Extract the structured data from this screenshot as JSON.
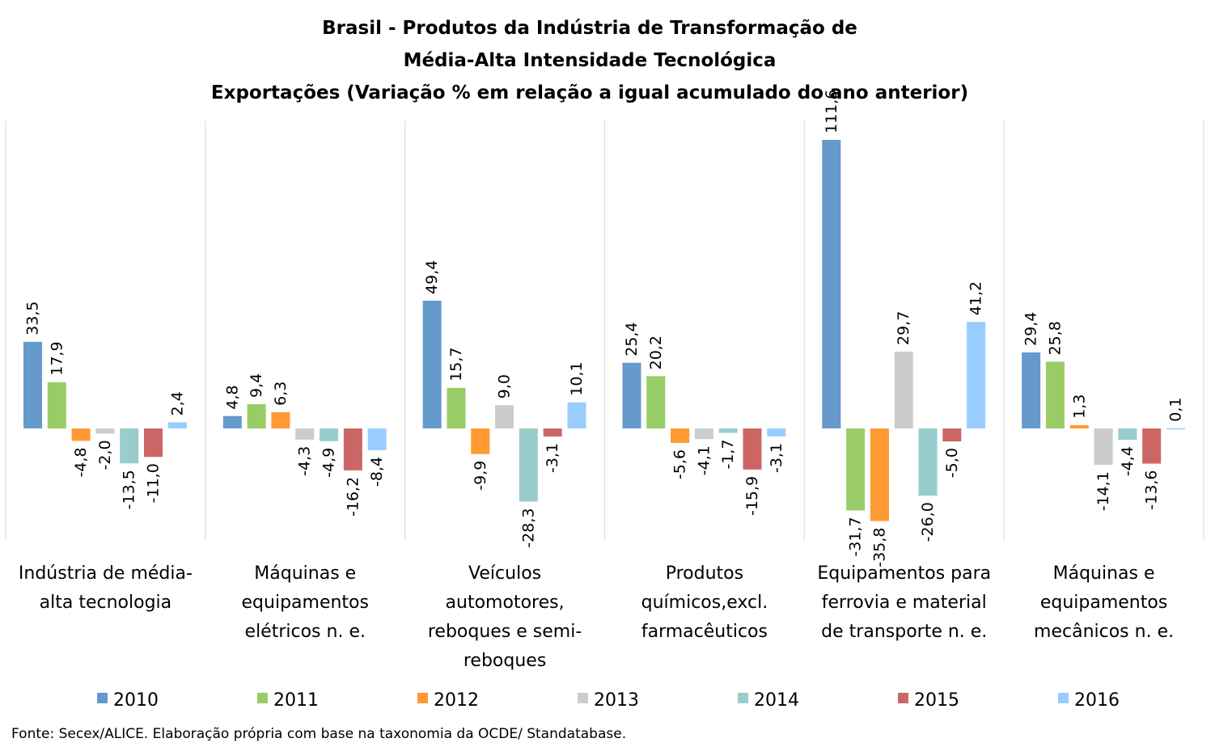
{
  "chart_data": {
    "type": "bar",
    "title": [
      "Brasil - Produtos da Indústria de Transformação de",
      "Média-Alta Intensidade Tecnológica",
      "Exportações (Variação % em relação a igual acumulado do ano anterior)"
    ],
    "categories": [
      [
        "Indústria de média-",
        "alta tecnologia"
      ],
      [
        "Máquinas e",
        "equipamentos",
        "elétricos n. e."
      ],
      [
        "Veículos",
        "automotores,",
        "reboques e semi-",
        "reboques"
      ],
      [
        "Produtos",
        "químicos,excl.",
        "farmacêuticos"
      ],
      [
        "Equipamentos para",
        "ferrovia e material",
        "de transporte n. e."
      ],
      [
        "Máquinas e",
        "equipamentos",
        "mecânicos  n. e."
      ]
    ],
    "series": [
      {
        "name": "2010",
        "color": "#6699cc",
        "values": [
          33.5,
          4.8,
          49.4,
          25.4,
          111.6,
          29.4
        ],
        "labels": [
          "33,5",
          "4,8",
          "49,4",
          "25,4",
          "111,6",
          "29,4"
        ]
      },
      {
        "name": "2011",
        "color": "#99cc66",
        "values": [
          17.9,
          9.4,
          15.7,
          20.2,
          -31.7,
          25.8
        ],
        "labels": [
          "17,9",
          "9,4",
          "15,7",
          "20,2",
          "-31,7",
          "25,8"
        ]
      },
      {
        "name": "2012",
        "color": "#ff9933",
        "values": [
          -4.8,
          6.3,
          -9.9,
          -5.6,
          -35.8,
          1.3
        ],
        "labels": [
          "-4,8",
          "6,3",
          "-9,9",
          "-5,6",
          "-35,8",
          "1,3"
        ]
      },
      {
        "name": "2013",
        "color": "#cccccc",
        "values": [
          -2.0,
          -4.3,
          9.0,
          -4.1,
          29.7,
          -14.1
        ],
        "labels": [
          "-2,0",
          "-4,3",
          "9,0",
          "-4,1",
          "29,7",
          "-14,1"
        ]
      },
      {
        "name": "2014",
        "color": "#99cccc",
        "values": [
          -13.5,
          -4.9,
          -28.3,
          -1.7,
          -26.0,
          -4.4
        ],
        "labels": [
          "-13,5",
          "-4,9",
          "-28,3",
          "-1,7",
          "-26,0",
          "-4,4"
        ]
      },
      {
        "name": "2015",
        "color": "#cc6666",
        "values": [
          -11.0,
          -16.2,
          -3.1,
          -15.9,
          -5.0,
          -13.6
        ],
        "labels": [
          "-11,0",
          "-16,2",
          "-3,1",
          "-15,9",
          "-5,0",
          "-13,6"
        ]
      },
      {
        "name": "2016",
        "color": "#99ccff",
        "values": [
          2.4,
          -8.4,
          10.1,
          -3.1,
          41.2,
          0.1
        ],
        "labels": [
          "2,4",
          "-8,4",
          "10,1",
          "-3,1",
          "41,2",
          "0,1"
        ]
      }
    ],
    "ylim": [
      -44,
      119
    ],
    "grid": false,
    "legend": "bottom",
    "source": "Fonte: Secex/ALICE. Elaboração própria com base na taxonomia da OCDE/ Standatabase."
  }
}
